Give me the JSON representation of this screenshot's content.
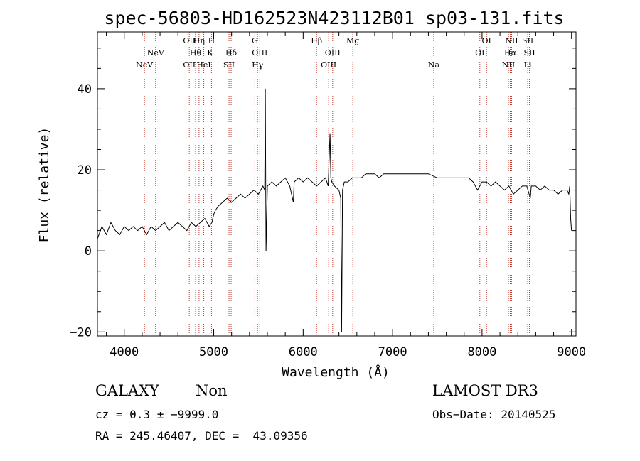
{
  "chart_data": {
    "type": "line",
    "title": "spec-56803-HD162523N423112B01_sp03-131.fits",
    "xlabel": "Wavelength (Å)",
    "ylabel": "Flux (relative)",
    "xlim": [
      3700,
      9050
    ],
    "ylim": [
      -21,
      54
    ],
    "xticks": [
      4000,
      5000,
      6000,
      7000,
      8000,
      9000
    ],
    "yticks": [
      -20,
      0,
      20,
      40
    ],
    "xtick_labels": [
      "4000",
      "5000",
      "6000",
      "7000",
      "8000",
      "9000"
    ],
    "ytick_labels": [
      "−20",
      "0",
      "20",
      "40"
    ],
    "series": [
      {
        "name": "flux",
        "x": [
          3700,
          3750,
          3800,
          3850,
          3900,
          3950,
          4000,
          4050,
          4100,
          4150,
          4200,
          4250,
          4300,
          4350,
          4400,
          4450,
          4500,
          4550,
          4600,
          4650,
          4700,
          4750,
          4800,
          4850,
          4900,
          4950,
          4980,
          5000,
          5020,
          5050,
          5100,
          5150,
          5200,
          5250,
          5300,
          5350,
          5400,
          5450,
          5500,
          5550,
          5570,
          5577,
          5585,
          5600,
          5650,
          5700,
          5750,
          5800,
          5850,
          5890,
          5900,
          5950,
          6000,
          6050,
          6100,
          6150,
          6200,
          6250,
          6280,
          6300,
          6310,
          6320,
          6350,
          6400,
          6420,
          6430,
          6440,
          6460,
          6500,
          6550,
          6600,
          6650,
          6700,
          6750,
          6800,
          6850,
          6900,
          6950,
          7000,
          7100,
          7200,
          7300,
          7400,
          7500,
          7600,
          7700,
          7800,
          7850,
          7900,
          7950,
          8000,
          8050,
          8100,
          8150,
          8200,
          8250,
          8300,
          8350,
          8400,
          8450,
          8500,
          8540,
          8550,
          8600,
          8650,
          8700,
          8750,
          8800,
          8850,
          8900,
          8950,
          8970,
          8980,
          8990,
          9000
        ],
        "y": [
          3,
          6,
          4,
          7,
          5,
          4,
          6,
          5,
          6,
          5,
          6,
          4,
          6,
          5,
          6,
          7,
          5,
          6,
          7,
          6,
          5,
          7,
          6,
          7,
          8,
          6,
          7,
          9,
          10,
          11,
          12,
          13,
          12,
          13,
          14,
          13,
          14,
          15,
          14,
          16,
          15,
          40,
          0,
          16,
          17,
          16,
          17,
          18,
          16,
          12,
          17,
          18,
          17,
          18,
          17,
          16,
          17,
          18,
          16,
          29,
          18,
          17,
          16,
          15,
          13,
          -20,
          15,
          17,
          17,
          18,
          18,
          18,
          19,
          19,
          19,
          18,
          19,
          19,
          19,
          19,
          19,
          19,
          19,
          18,
          18,
          18,
          18,
          18,
          17,
          15,
          17,
          17,
          16,
          17,
          16,
          15,
          16,
          14,
          15,
          16,
          16,
          13,
          16,
          16,
          15,
          16,
          15,
          15,
          14,
          15,
          15,
          14,
          16,
          8,
          5
        ]
      }
    ],
    "emission_lines": [
      {
        "label": "NeV",
        "x": 4226,
        "row": 3
      },
      {
        "label": "NeV",
        "x": 4350,
        "row": 2
      },
      {
        "label": "OII",
        "x": 4727,
        "row": 1
      },
      {
        "label": "OII",
        "x": 4727,
        "row": 3
      },
      {
        "label": "Hη",
        "x": 4836,
        "row": 1
      },
      {
        "label": "Hθ",
        "x": 4797,
        "row": 2
      },
      {
        "label": "HeI",
        "x": 4889,
        "row": 3
      },
      {
        "label": "H",
        "x": 4975,
        "row": 1
      },
      {
        "label": "K",
        "x": 4960,
        "row": 2
      },
      {
        "label": "Hδ",
        "x": 5195,
        "row": 2
      },
      {
        "label": "SII",
        "x": 5171,
        "row": 3
      },
      {
        "label": "G",
        "x": 5460,
        "row": 1
      },
      {
        "label": "OIII",
        "x": 5515,
        "row": 2
      },
      {
        "label": "Hγ",
        "x": 5490,
        "row": 3
      },
      {
        "label": "Hβ",
        "x": 6150,
        "row": 1
      },
      {
        "label": "OIII",
        "x": 6330,
        "row": 2
      },
      {
        "label": "OIII",
        "x": 6285,
        "row": 3
      },
      {
        "label": "Mg",
        "x": 6555,
        "row": 1
      },
      {
        "label": "Na",
        "x": 7460,
        "row": 3
      },
      {
        "label": "OI",
        "x": 8050,
        "row": 1
      },
      {
        "label": "OI",
        "x": 7975,
        "row": 2
      },
      {
        "label": "NII",
        "x": 8330,
        "row": 1
      },
      {
        "label": "Hα",
        "x": 8315,
        "row": 2
      },
      {
        "label": "NII",
        "x": 8295,
        "row": 3
      },
      {
        "label": "SII",
        "x": 8510,
        "row": 1
      },
      {
        "label": "SII",
        "x": 8530,
        "row": 2
      },
      {
        "label": "Li",
        "x": 8510,
        "row": 3
      }
    ]
  },
  "info": {
    "class": "GALAXY",
    "subclass": "Non",
    "survey": "LAMOST DR3",
    "cz": "cz = 0.3 ± −9999.0",
    "obs_date": "Obs−Date: 20140525",
    "coords": "RA = 245.46407, DEC =  43.09356"
  },
  "colors": {
    "line_marker": "#c0392b",
    "spectrum": "#000000",
    "axis": "#000000"
  }
}
